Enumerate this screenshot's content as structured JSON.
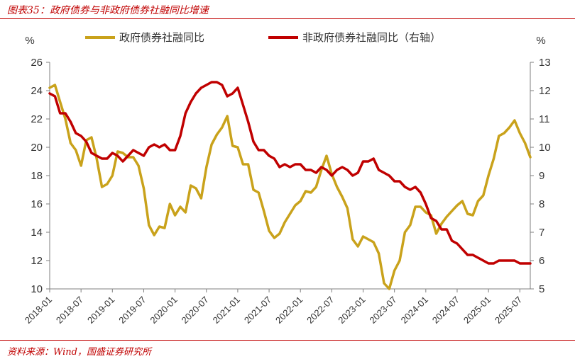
{
  "header": {
    "title": "图表35：政府债券与非政府债券社融同比增速"
  },
  "footer": {
    "source": "资料来源：Wind，国盛证券研究所"
  },
  "chart_data": {
    "type": "line",
    "y_left_unit": "%",
    "y_right_unit": "%",
    "ylim_left": [
      10,
      26
    ],
    "ylim_right": [
      5,
      13
    ],
    "yticks_left": [
      10,
      12,
      14,
      16,
      18,
      20,
      22,
      24,
      26
    ],
    "yticks_right": [
      5,
      6,
      7,
      8,
      9,
      10,
      11,
      12,
      13
    ],
    "xticks": [
      "2018-01",
      "2018-07",
      "2019-01",
      "2019-07",
      "2020-01",
      "2020-07",
      "2021-01",
      "2021-07",
      "2022-01",
      "2022-07",
      "2023-01",
      "2023-07",
      "2024-01",
      "2024-07",
      "2025-01",
      "2025-07"
    ],
    "legend_position": "top",
    "grid": false,
    "series": [
      {
        "name": "政府债券社融同比",
        "axis": "left",
        "color": "#c9a21b",
        "points": [
          [
            "2018-01",
            24.2
          ],
          [
            "2018-02",
            24.4
          ],
          [
            "2018-03",
            23.2
          ],
          [
            "2018-04",
            22.0
          ],
          [
            "2018-05",
            20.3
          ],
          [
            "2018-06",
            19.8
          ],
          [
            "2018-07",
            18.7
          ],
          [
            "2018-08",
            20.5
          ],
          [
            "2018-09",
            20.7
          ],
          [
            "2018-10",
            19.2
          ],
          [
            "2018-11",
            17.2
          ],
          [
            "2018-12",
            17.4
          ],
          [
            "2019-01",
            18.0
          ],
          [
            "2019-02",
            19.7
          ],
          [
            "2019-03",
            19.6
          ],
          [
            "2019-04",
            19.3
          ],
          [
            "2019-05",
            19.3
          ],
          [
            "2019-06",
            18.7
          ],
          [
            "2019-07",
            17.1
          ],
          [
            "2019-08",
            14.5
          ],
          [
            "2019-09",
            13.8
          ],
          [
            "2019-10",
            14.4
          ],
          [
            "2019-11",
            14.3
          ],
          [
            "2019-12",
            16.0
          ],
          [
            "2020-01",
            15.2
          ],
          [
            "2020-02",
            15.8
          ],
          [
            "2020-03",
            15.4
          ],
          [
            "2020-04",
            17.3
          ],
          [
            "2020-05",
            17.1
          ],
          [
            "2020-06",
            16.4
          ],
          [
            "2020-07",
            18.6
          ],
          [
            "2020-08",
            20.2
          ],
          [
            "2020-09",
            20.9
          ],
          [
            "2020-10",
            21.4
          ],
          [
            "2020-11",
            22.2
          ],
          [
            "2020-12",
            20.1
          ],
          [
            "2021-01",
            20.0
          ],
          [
            "2021-02",
            18.8
          ],
          [
            "2021-03",
            18.8
          ],
          [
            "2021-04",
            17.0
          ],
          [
            "2021-05",
            16.8
          ],
          [
            "2021-06",
            15.5
          ],
          [
            "2021-07",
            14.1
          ],
          [
            "2021-08",
            13.6
          ],
          [
            "2021-09",
            13.9
          ],
          [
            "2021-10",
            14.7
          ],
          [
            "2021-11",
            15.3
          ],
          [
            "2021-12",
            15.9
          ],
          [
            "2022-01",
            16.2
          ],
          [
            "2022-02",
            16.9
          ],
          [
            "2022-03",
            16.8
          ],
          [
            "2022-04",
            17.2
          ],
          [
            "2022-05",
            18.4
          ],
          [
            "2022-06",
            19.4
          ],
          [
            "2022-07",
            18.1
          ],
          [
            "2022-08",
            17.2
          ],
          [
            "2022-09",
            16.5
          ],
          [
            "2022-10",
            15.7
          ],
          [
            "2022-11",
            13.5
          ],
          [
            "2022-12",
            13.0
          ],
          [
            "2023-01",
            13.7
          ],
          [
            "2023-02",
            13.5
          ],
          [
            "2023-03",
            13.3
          ],
          [
            "2023-04",
            12.5
          ],
          [
            "2023-05",
            10.4
          ],
          [
            "2023-06",
            10.0
          ],
          [
            "2023-07",
            11.3
          ],
          [
            "2023-08",
            12.0
          ],
          [
            "2023-09",
            14.0
          ],
          [
            "2023-10",
            14.5
          ],
          [
            "2023-11",
            15.8
          ],
          [
            "2023-12",
            15.8
          ],
          [
            "2024-01",
            15.4
          ],
          [
            "2024-02",
            15.2
          ],
          [
            "2024-03",
            13.9
          ],
          [
            "2024-04",
            14.6
          ],
          [
            "2024-05",
            15.1
          ],
          [
            "2024-06",
            15.5
          ],
          [
            "2024-07",
            15.9
          ],
          [
            "2024-08",
            16.2
          ],
          [
            "2024-09",
            15.3
          ],
          [
            "2024-10",
            15.2
          ],
          [
            "2024-11",
            16.2
          ],
          [
            "2024-12",
            16.6
          ],
          [
            "2025-01",
            18.0
          ],
          [
            "2025-02",
            19.2
          ],
          [
            "2025-03",
            20.8
          ],
          [
            "2025-04",
            21.0
          ],
          [
            "2025-05",
            21.4
          ],
          [
            "2025-06",
            21.9
          ],
          [
            "2025-07",
            21.0
          ],
          [
            "2025-08",
            20.3
          ],
          [
            "2025-09",
            19.3
          ]
        ]
      },
      {
        "name": "非政府债券社融同比（右轴）",
        "axis": "right",
        "color": "#c00000",
        "points": [
          [
            "2018-01",
            11.9
          ],
          [
            "2018-02",
            11.8
          ],
          [
            "2018-03",
            11.2
          ],
          [
            "2018-04",
            11.2
          ],
          [
            "2018-05",
            10.9
          ],
          [
            "2018-06",
            10.5
          ],
          [
            "2018-07",
            10.4
          ],
          [
            "2018-08",
            10.2
          ],
          [
            "2018-09",
            9.8
          ],
          [
            "2018-10",
            9.7
          ],
          [
            "2018-11",
            9.6
          ],
          [
            "2018-12",
            9.6
          ],
          [
            "2019-01",
            9.8
          ],
          [
            "2019-02",
            9.7
          ],
          [
            "2019-03",
            9.5
          ],
          [
            "2019-04",
            9.7
          ],
          [
            "2019-05",
            9.9
          ],
          [
            "2019-06",
            9.8
          ],
          [
            "2019-07",
            9.7
          ],
          [
            "2019-08",
            10.0
          ],
          [
            "2019-09",
            10.1
          ],
          [
            "2019-10",
            10.0
          ],
          [
            "2019-11",
            10.1
          ],
          [
            "2019-12",
            9.9
          ],
          [
            "2020-01",
            9.9
          ],
          [
            "2020-02",
            10.4
          ],
          [
            "2020-03",
            11.2
          ],
          [
            "2020-04",
            11.6
          ],
          [
            "2020-05",
            11.9
          ],
          [
            "2020-06",
            12.1
          ],
          [
            "2020-07",
            12.2
          ],
          [
            "2020-08",
            12.3
          ],
          [
            "2020-09",
            12.3
          ],
          [
            "2020-10",
            12.2
          ],
          [
            "2020-11",
            11.8
          ],
          [
            "2020-12",
            11.9
          ],
          [
            "2021-01",
            12.1
          ],
          [
            "2021-02",
            11.5
          ],
          [
            "2021-03",
            10.9
          ],
          [
            "2021-04",
            10.2
          ],
          [
            "2021-05",
            9.9
          ],
          [
            "2021-06",
            9.9
          ],
          [
            "2021-07",
            9.7
          ],
          [
            "2021-08",
            9.6
          ],
          [
            "2021-09",
            9.3
          ],
          [
            "2021-10",
            9.4
          ],
          [
            "2021-11",
            9.3
          ],
          [
            "2021-12",
            9.4
          ],
          [
            "2022-01",
            9.4
          ],
          [
            "2022-02",
            9.2
          ],
          [
            "2022-03",
            9.2
          ],
          [
            "2022-04",
            9.1
          ],
          [
            "2022-05",
            9.3
          ],
          [
            "2022-06",
            9.2
          ],
          [
            "2022-07",
            9.0
          ],
          [
            "2022-08",
            9.2
          ],
          [
            "2022-09",
            9.3
          ],
          [
            "2022-10",
            9.2
          ],
          [
            "2022-11",
            9.0
          ],
          [
            "2022-12",
            9.1
          ],
          [
            "2023-01",
            9.5
          ],
          [
            "2023-02",
            9.5
          ],
          [
            "2023-03",
            9.6
          ],
          [
            "2023-04",
            9.2
          ],
          [
            "2023-05",
            9.1
          ],
          [
            "2023-06",
            9.0
          ],
          [
            "2023-07",
            8.8
          ],
          [
            "2023-08",
            8.8
          ],
          [
            "2023-09",
            8.6
          ],
          [
            "2023-10",
            8.5
          ],
          [
            "2023-11",
            8.6
          ],
          [
            "2023-12",
            8.4
          ],
          [
            "2024-01",
            8.0
          ],
          [
            "2024-02",
            7.5
          ],
          [
            "2024-03",
            7.4
          ],
          [
            "2024-04",
            7.1
          ],
          [
            "2024-05",
            7.1
          ],
          [
            "2024-06",
            6.7
          ],
          [
            "2024-07",
            6.6
          ],
          [
            "2024-08",
            6.4
          ],
          [
            "2024-09",
            6.2
          ],
          [
            "2024-10",
            6.2
          ],
          [
            "2024-11",
            6.1
          ],
          [
            "2024-12",
            6.0
          ],
          [
            "2025-01",
            5.9
          ],
          [
            "2025-02",
            5.9
          ],
          [
            "2025-03",
            6.0
          ],
          [
            "2025-04",
            6.0
          ],
          [
            "2025-05",
            6.0
          ],
          [
            "2025-06",
            6.0
          ],
          [
            "2025-07",
            5.9
          ],
          [
            "2025-08",
            5.9
          ],
          [
            "2025-09",
            5.9
          ]
        ]
      }
    ]
  }
}
